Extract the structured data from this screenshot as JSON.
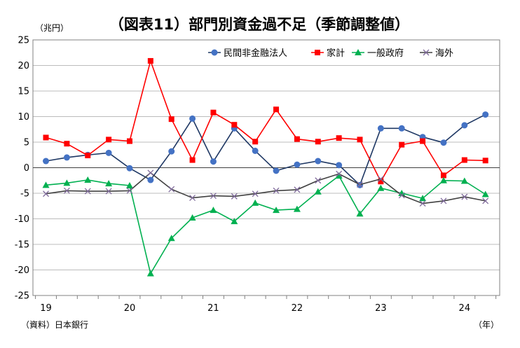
{
  "chart_data": {
    "type": "line",
    "title": "（図表11）部門別資金過不足（季節調整値）",
    "ylabel": "（兆円）",
    "xlabel": "（年）",
    "source": "（資料）日本銀行",
    "ylim": [
      -25,
      25
    ],
    "yticks": [
      25,
      20,
      15,
      10,
      5,
      0,
      -5,
      -10,
      -15,
      -20,
      -25
    ],
    "year_labels": [
      "19",
      "20",
      "21",
      "22",
      "23",
      "24"
    ],
    "grid": true,
    "legend_position": "top-right",
    "quarters": [
      "2019Q1",
      "2019Q2",
      "2019Q3",
      "2019Q4",
      "2020Q1",
      "2020Q2",
      "2020Q3",
      "2020Q4",
      "2021Q1",
      "2021Q2",
      "2021Q3",
      "2021Q4",
      "2022Q1",
      "2022Q2",
      "2022Q3",
      "2022Q4",
      "2023Q1",
      "2023Q2",
      "2023Q3",
      "2023Q4",
      "2024Q1",
      "2024Q2"
    ],
    "series": [
      {
        "name": "民間非金融法人",
        "color": "#2f5597",
        "marker": "circle",
        "values": [
          1.3,
          2.0,
          2.5,
          2.9,
          -0.1,
          -2.4,
          3.2,
          9.6,
          1.2,
          7.7,
          3.3,
          -0.6,
          0.6,
          1.3,
          0.5,
          -3.4,
          7.7,
          7.7,
          6.0,
          4.9,
          8.3,
          10.4
        ]
      },
      {
        "name": "家計",
        "color": "#ff0000",
        "marker": "square",
        "values": [
          5.9,
          4.7,
          2.4,
          5.5,
          5.2,
          20.9,
          9.5,
          1.5,
          10.8,
          8.4,
          5.1,
          11.4,
          5.6,
          5.1,
          5.8,
          5.5,
          -2.7,
          4.5,
          5.2,
          -1.5,
          1.5,
          1.4
        ]
      },
      {
        "name": "一般政府",
        "color": "#00b050",
        "marker": "triangle",
        "values": [
          -3.4,
          -3.0,
          -2.4,
          -3.1,
          -3.5,
          -20.7,
          -13.8,
          -9.8,
          -8.3,
          -10.5,
          -6.9,
          -8.3,
          -8.1,
          -4.7,
          -1.6,
          -9.0,
          -4.0,
          -5.0,
          -6.0,
          -2.5,
          -2.6,
          -5.2
        ]
      },
      {
        "name": "海外",
        "color": "#7030a0",
        "marker": "x",
        "values": [
          -5.1,
          -4.5,
          -4.6,
          -4.6,
          -4.5,
          -1.0,
          -4.2,
          -5.9,
          -5.5,
          -5.6,
          -5.1,
          -4.5,
          -4.3,
          -2.5,
          -1.2,
          -3.3,
          -2.2,
          -5.4,
          -7.0,
          -6.5,
          -5.7,
          -6.5
        ]
      }
    ]
  }
}
